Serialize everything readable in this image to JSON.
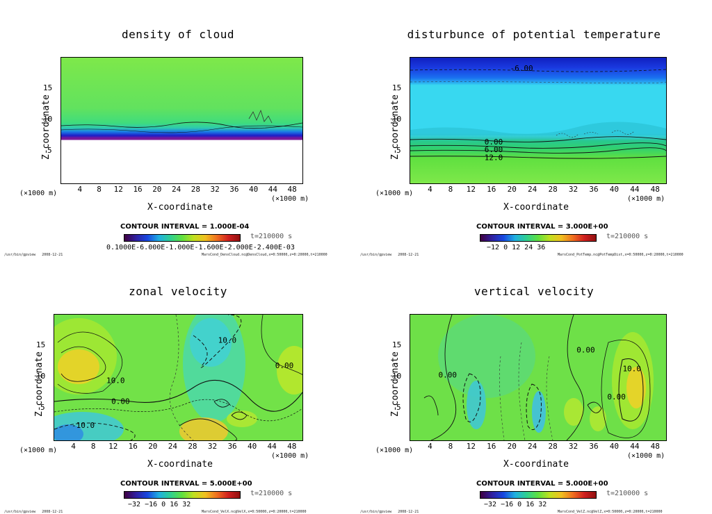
{
  "footer_left": "/usr/bin/gpview",
  "footer_date": "2008-12-21",
  "x_unit": "(×1000 m)",
  "chart_data": [
    {
      "type": "heatmap",
      "title": "density of cloud",
      "xlabel": "X-coordinate",
      "ylabel": "Z-coordinate",
      "xlim": [
        0,
        50
      ],
      "ylim": [
        0,
        20
      ],
      "xticks": [
        4,
        8,
        12,
        16,
        20,
        24,
        28,
        32,
        36,
        40,
        44,
        48
      ],
      "yticks": [
        5,
        10,
        15
      ],
      "contour_interval": "CONTOUR INTERVAL = 1.000E-04",
      "time": "t=210000 s",
      "colorbar_labels": "0.1000E-6.000E-1.000E-1.600E-2.000E-2.400E-03",
      "contour_labels": [],
      "footer_right": "MarsCond_DensCloud.nc@DensCloud,x=0:50000,z=0:20000,t=210000"
    },
    {
      "type": "heatmap",
      "title": "disturbunce of potential temperature",
      "xlabel": "X-coordinate",
      "ylabel": "Z-coordinate",
      "xlim": [
        0,
        50
      ],
      "ylim": [
        0,
        20
      ],
      "xticks": [
        4,
        8,
        12,
        16,
        20,
        24,
        28,
        32,
        36,
        40,
        44,
        48
      ],
      "yticks": [
        5,
        10,
        15
      ],
      "contour_interval": "CONTOUR INTERVAL = 3.000E+00",
      "time": "t=210000 s",
      "colorbar_labels": "−12    0     12    24    36",
      "contour_labels": [
        {
          "text": "-6.00",
          "x": 19.5,
          "z": 17.9
        },
        {
          "text": "0.00",
          "x": 14.5,
          "z": 6.2
        },
        {
          "text": "6.00",
          "x": 14.5,
          "z": 5.0
        },
        {
          "text": "12.0",
          "x": 14.5,
          "z": 3.7
        }
      ],
      "footer_right": "MarsCond_PotTemp.nc@PotTempDist,x=0:50000,z=0:20000,t=210000"
    },
    {
      "type": "heatmap",
      "title": "zonal velocity",
      "xlabel": "X-coordinate",
      "ylabel": "Z-coordinate",
      "xlim": [
        0,
        50
      ],
      "ylim": [
        0,
        20
      ],
      "xticks": [
        4,
        8,
        12,
        16,
        20,
        24,
        28,
        32,
        36,
        40,
        44,
        48
      ],
      "yticks": [
        5,
        10,
        15
      ],
      "contour_interval": "CONTOUR INTERVAL = 5.000E+00",
      "time": "t=210000 s",
      "colorbar_labels": "−32   −16    0     16    32",
      "contour_labels": [
        {
          "text": "10.0",
          "x": 33.0,
          "z": 15.5
        },
        {
          "text": "10.0",
          "x": 10.5,
          "z": 9.1
        },
        {
          "text": "0.00",
          "x": 11.5,
          "z": 5.8
        },
        {
          "text": "0.00",
          "x": 44.5,
          "z": 11.5
        },
        {
          "text": "-10.0",
          "x": 3.5,
          "z": 2.0
        }
      ],
      "footer_right": "MarsCond_VelX.nc@VelX,x=0:50000,z=0:20000,t=210000"
    },
    {
      "type": "heatmap",
      "title": "vertical velocity",
      "xlabel": "X-coordinate",
      "ylabel": "Z-coordinate",
      "xlim": [
        0,
        50
      ],
      "ylim": [
        0,
        20
      ],
      "xticks": [
        4,
        8,
        12,
        16,
        20,
        24,
        28,
        32,
        36,
        40,
        44,
        48
      ],
      "yticks": [
        5,
        10,
        15
      ],
      "contour_interval": "CONTOUR INTERVAL = 5.000E+00",
      "time": "t=210000 s",
      "colorbar_labels": "−32   −16    0     16    32",
      "contour_labels": [
        {
          "text": "0.00",
          "x": 32.5,
          "z": 14.0
        },
        {
          "text": "0.00",
          "x": 5.5,
          "z": 10.0
        },
        {
          "text": "10.0",
          "x": 41.5,
          "z": 11.0
        },
        {
          "text": "0.00",
          "x": 38.5,
          "z": 6.5
        }
      ],
      "footer_right": "MarsCond_VelZ.nc@VelZ,x=0:50000,z=0:20000,t=210000"
    }
  ]
}
